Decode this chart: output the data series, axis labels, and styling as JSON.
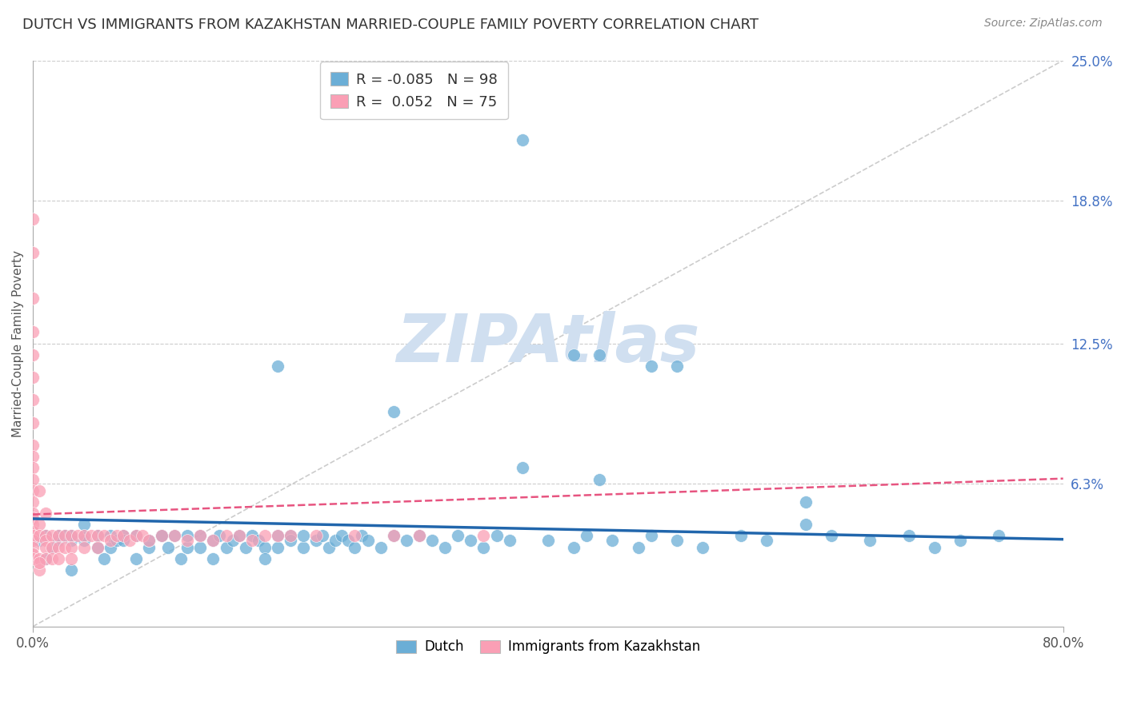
{
  "title": "DUTCH VS IMMIGRANTS FROM KAZAKHSTAN MARRIED-COUPLE FAMILY POVERTY CORRELATION CHART",
  "source": "Source: ZipAtlas.com",
  "ylabel": "Married-Couple Family Poverty",
  "xlim": [
    0.0,
    0.8
  ],
  "ylim": [
    0.0,
    0.25
  ],
  "ytick_vals": [
    0.063,
    0.125,
    0.188,
    0.25
  ],
  "ytick_labels": [
    "6.3%",
    "12.5%",
    "18.8%",
    "25.0%"
  ],
  "xtick_vals": [
    0.0,
    0.8
  ],
  "xtick_labels": [
    "0.0%",
    "80.0%"
  ],
  "dutch_color": "#6baed6",
  "kazakh_color": "#fa9fb5",
  "dutch_line_color": "#2166ac",
  "kazakh_line_color": "#e75480",
  "dutch_R": -0.085,
  "dutch_N": 98,
  "kazakh_R": 0.052,
  "kazakh_N": 75,
  "background_color": "#ffffff",
  "grid_color": "#cccccc",
  "watermark_text": "ZIPAtlas",
  "watermark_color": "#d0dff0",
  "dutch_points_x": [
    0.005,
    0.01,
    0.01,
    0.015,
    0.02,
    0.02,
    0.025,
    0.03,
    0.03,
    0.03,
    0.04,
    0.04,
    0.04,
    0.05,
    0.05,
    0.055,
    0.06,
    0.06,
    0.065,
    0.07,
    0.07,
    0.08,
    0.08,
    0.09,
    0.09,
    0.1,
    0.1,
    0.105,
    0.11,
    0.115,
    0.12,
    0.12,
    0.13,
    0.13,
    0.14,
    0.14,
    0.145,
    0.15,
    0.155,
    0.16,
    0.165,
    0.17,
    0.175,
    0.18,
    0.18,
    0.19,
    0.19,
    0.2,
    0.2,
    0.21,
    0.21,
    0.22,
    0.225,
    0.23,
    0.235,
    0.24,
    0.245,
    0.25,
    0.255,
    0.26,
    0.27,
    0.28,
    0.29,
    0.3,
    0.31,
    0.32,
    0.33,
    0.34,
    0.35,
    0.36,
    0.37,
    0.38,
    0.4,
    0.42,
    0.43,
    0.44,
    0.45,
    0.47,
    0.48,
    0.5,
    0.52,
    0.55,
    0.57,
    0.6,
    0.62,
    0.65,
    0.68,
    0.7,
    0.72,
    0.75,
    0.38,
    0.28,
    0.19,
    0.44,
    0.5,
    0.6,
    0.42,
    0.48
  ],
  "dutch_points_y": [
    0.038,
    0.04,
    0.03,
    0.035,
    0.04,
    0.038,
    0.04,
    0.038,
    0.04,
    0.025,
    0.04,
    0.038,
    0.045,
    0.035,
    0.04,
    0.03,
    0.035,
    0.04,
    0.038,
    0.04,
    0.038,
    0.03,
    0.04,
    0.035,
    0.038,
    0.04,
    0.04,
    0.035,
    0.04,
    0.03,
    0.035,
    0.04,
    0.04,
    0.035,
    0.038,
    0.03,
    0.04,
    0.035,
    0.038,
    0.04,
    0.035,
    0.04,
    0.038,
    0.035,
    0.03,
    0.04,
    0.035,
    0.04,
    0.038,
    0.035,
    0.04,
    0.038,
    0.04,
    0.035,
    0.038,
    0.04,
    0.038,
    0.035,
    0.04,
    0.038,
    0.035,
    0.04,
    0.038,
    0.04,
    0.038,
    0.035,
    0.04,
    0.038,
    0.035,
    0.04,
    0.038,
    0.215,
    0.038,
    0.035,
    0.04,
    0.065,
    0.038,
    0.035,
    0.04,
    0.038,
    0.035,
    0.04,
    0.038,
    0.055,
    0.04,
    0.038,
    0.04,
    0.035,
    0.038,
    0.04,
    0.07,
    0.095,
    0.115,
    0.12,
    0.115,
    0.045,
    0.12,
    0.115
  ],
  "kazakh_points_x": [
    0.0,
    0.0,
    0.0,
    0.0,
    0.0,
    0.0,
    0.0,
    0.0,
    0.0,
    0.0,
    0.0,
    0.0,
    0.0,
    0.0,
    0.0,
    0.0,
    0.0,
    0.0,
    0.0,
    0.0,
    0.0,
    0.0,
    0.0,
    0.005,
    0.005,
    0.005,
    0.005,
    0.005,
    0.01,
    0.01,
    0.01,
    0.01,
    0.01,
    0.015,
    0.015,
    0.015,
    0.02,
    0.02,
    0.02,
    0.025,
    0.025,
    0.03,
    0.03,
    0.03,
    0.035,
    0.04,
    0.04,
    0.045,
    0.05,
    0.05,
    0.055,
    0.06,
    0.065,
    0.07,
    0.075,
    0.08,
    0.085,
    0.09,
    0.1,
    0.11,
    0.12,
    0.13,
    0.14,
    0.15,
    0.16,
    0.17,
    0.18,
    0.19,
    0.2,
    0.22,
    0.25,
    0.28,
    0.3,
    0.35,
    0.005
  ],
  "kazakh_points_y": [
    0.18,
    0.165,
    0.145,
    0.13,
    0.12,
    0.11,
    0.1,
    0.09,
    0.08,
    0.075,
    0.07,
    0.065,
    0.06,
    0.055,
    0.05,
    0.048,
    0.045,
    0.042,
    0.04,
    0.038,
    0.035,
    0.032,
    0.03,
    0.06,
    0.045,
    0.04,
    0.03,
    0.025,
    0.05,
    0.04,
    0.038,
    0.035,
    0.03,
    0.04,
    0.035,
    0.03,
    0.04,
    0.035,
    0.03,
    0.04,
    0.035,
    0.04,
    0.035,
    0.03,
    0.04,
    0.04,
    0.035,
    0.04,
    0.04,
    0.035,
    0.04,
    0.038,
    0.04,
    0.04,
    0.038,
    0.04,
    0.04,
    0.038,
    0.04,
    0.04,
    0.038,
    0.04,
    0.038,
    0.04,
    0.04,
    0.038,
    0.04,
    0.04,
    0.04,
    0.04,
    0.04,
    0.04,
    0.04,
    0.04,
    0.028
  ]
}
